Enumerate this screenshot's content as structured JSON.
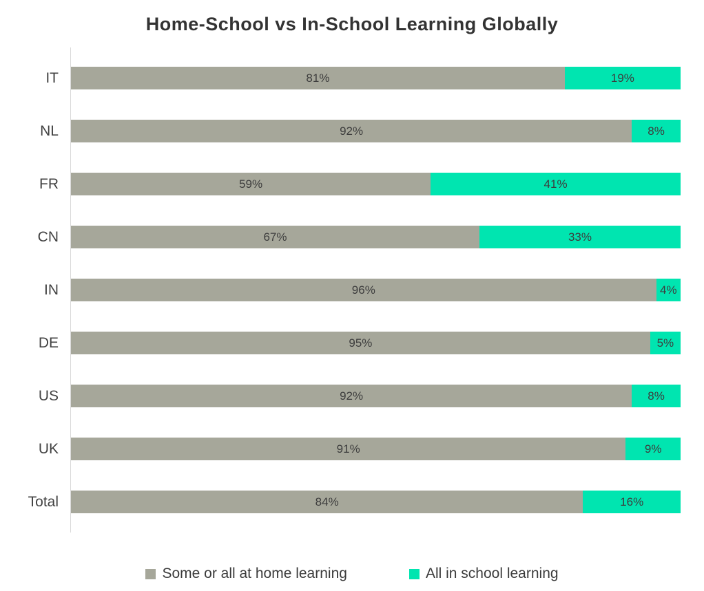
{
  "title": "Home-School vs In-School Learning Globally",
  "colors": {
    "home": "#a6a79a",
    "school": "#00e5b0",
    "label_text": "#3d3d3d"
  },
  "legend": {
    "items": [
      {
        "label": "Some or all at home learning",
        "color_key": "home"
      },
      {
        "label": "All in school learning",
        "color_key": "school"
      }
    ],
    "position": "bottom"
  },
  "chart_data": {
    "type": "bar",
    "orientation": "horizontal",
    "stacked": true,
    "title": "Home-School vs In-School Learning Globally",
    "categories": [
      "IT",
      "NL",
      "FR",
      "CN",
      "IN",
      "DE",
      "US",
      "UK",
      "Total"
    ],
    "series": [
      {
        "name": "Some or all at home learning",
        "color_key": "home",
        "values": [
          81,
          92,
          59,
          67,
          96,
          95,
          92,
          91,
          84
        ]
      },
      {
        "name": "All in school learning",
        "color_key": "school",
        "values": [
          19,
          8,
          41,
          33,
          4,
          5,
          8,
          9,
          16
        ]
      }
    ],
    "value_format": "percent",
    "xlim": [
      0,
      100
    ],
    "grid": false,
    "legend_position": "bottom"
  }
}
